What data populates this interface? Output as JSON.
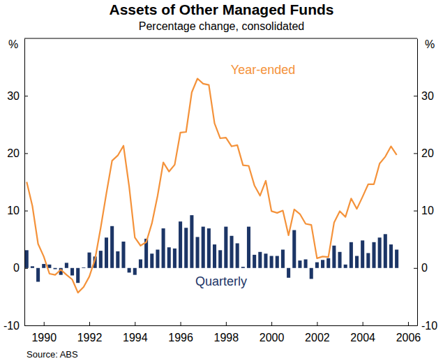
{
  "chart_data": {
    "type": "bar",
    "title": "Assets of Other Managed Funds",
    "subtitle": "Percentage change, consolidated",
    "y_label": "%",
    "y2_label": "%",
    "source": "Source: ABS",
    "x": [
      1989.25,
      1989.5,
      1989.75,
      1990,
      1990.25,
      1990.5,
      1990.75,
      1991,
      1991.25,
      1991.5,
      1991.75,
      1992,
      1992.25,
      1992.5,
      1992.75,
      1993,
      1993.25,
      1993.5,
      1993.75,
      1994,
      1994.25,
      1994.5,
      1994.75,
      1995,
      1995.25,
      1995.5,
      1995.75,
      1996,
      1996.25,
      1996.5,
      1996.75,
      1997,
      1997.25,
      1997.5,
      1997.75,
      1998,
      1998.25,
      1998.5,
      1998.75,
      1999,
      1999.25,
      1999.5,
      1999.75,
      2000,
      2000.25,
      2000.5,
      2000.75,
      2001,
      2001.25,
      2001.5,
      2001.75,
      2002,
      2002.25,
      2002.5,
      2002.75,
      2003,
      2003.25,
      2003.5,
      2003.75,
      2004,
      2004.25,
      2004.5,
      2004.75,
      2005,
      2005.25,
      2005.5
    ],
    "xlim": [
      1989.15,
      2006.4
    ],
    "xticks": [
      1990,
      1992,
      1994,
      1996,
      1998,
      2000,
      2002,
      2004,
      2006
    ],
    "ylim": [
      -10,
      40
    ],
    "yticks": [
      -10,
      0,
      10,
      20,
      30
    ],
    "y2lim": [
      -10,
      40
    ],
    "y2ticks": [
      -10,
      0,
      10,
      20,
      30
    ],
    "grid": false,
    "series": [
      {
        "name": "Quarterly",
        "type": "bar",
        "color": "#1c3566",
        "values": [
          3.1,
          0.3,
          -2.4,
          0.7,
          0.6,
          -0.2,
          -1.2,
          0.9,
          -1.3,
          -2.6,
          0.1,
          2.7,
          2.0,
          3.0,
          5.3,
          7.3,
          2.9,
          4.6,
          -0.8,
          -1.2,
          1.5,
          5.1,
          2.5,
          3.2,
          6.9,
          3.6,
          3.4,
          8.1,
          7.0,
          9.2,
          5.4,
          7.2,
          6.9,
          4.1,
          3.1,
          7.2,
          5.6,
          4.3,
          0.2,
          7.2,
          2.3,
          2.8,
          2.5,
          2.1,
          2.1,
          3.2,
          -1.7,
          6.6,
          1.3,
          1.5,
          -1.9,
          1.0,
          1.4,
          1.7,
          3.9,
          2.8,
          0.6,
          4.5,
          2.1,
          4.8,
          2.6,
          4.5,
          5.3,
          5.9,
          4.1,
          3.2
        ]
      },
      {
        "name": "Year-ended",
        "type": "line",
        "color": "#f4923a",
        "values": [
          15.0,
          10.8,
          4.2,
          2.0,
          -1.0,
          -1.2,
          -0.3,
          -1.2,
          -2.0,
          -4.3,
          -3.3,
          -1.5,
          1.5,
          7.0,
          13.0,
          18.7,
          19.6,
          21.3,
          14.2,
          5.3,
          3.9,
          4.5,
          7.8,
          12.6,
          18.4,
          16.8,
          18.0,
          23.6,
          23.7,
          30.6,
          33.0,
          32.1,
          31.9,
          25.2,
          22.6,
          22.7,
          21.2,
          21.4,
          17.9,
          17.8,
          14.4,
          12.6,
          15.2,
          9.9,
          9.6,
          10.0,
          5.7,
          10.2,
          9.4,
          7.7,
          7.5,
          1.7,
          2.0,
          1.9,
          7.9,
          9.9,
          8.9,
          12.1,
          10.3,
          12.4,
          14.6,
          14.6,
          18.2,
          19.4,
          21.2,
          19.7
        ]
      }
    ]
  }
}
